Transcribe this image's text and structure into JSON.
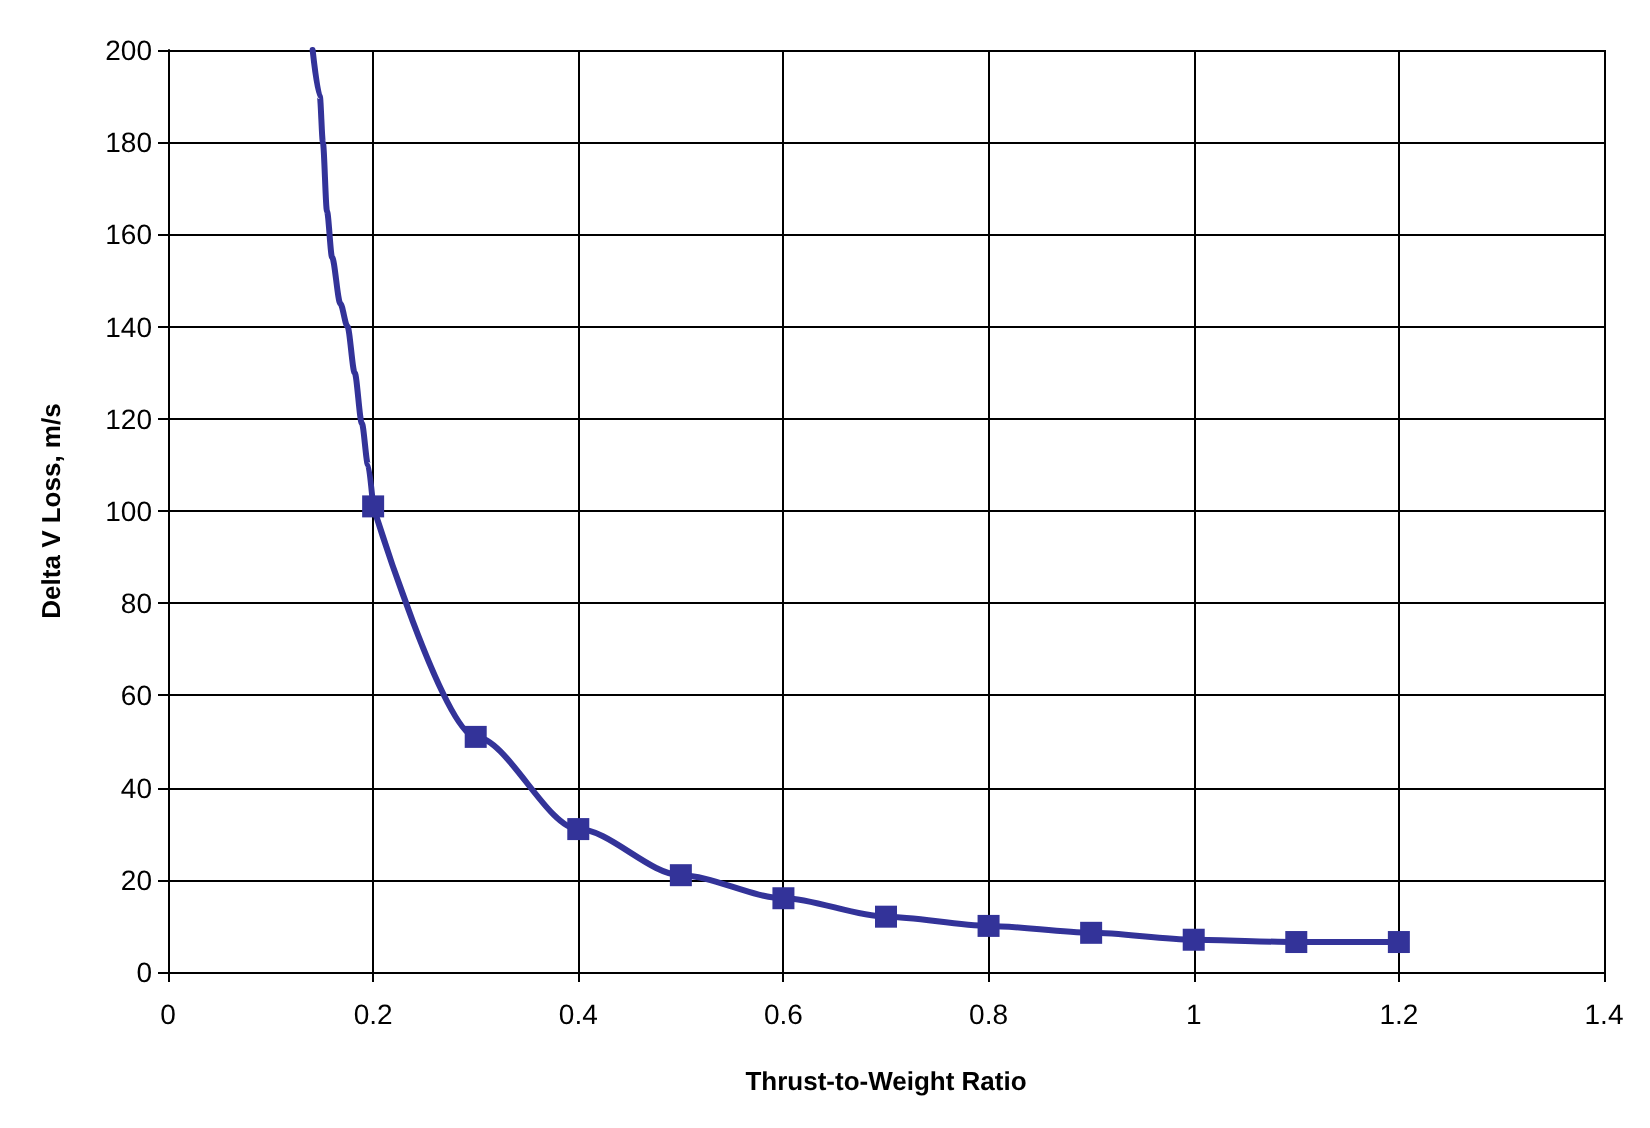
{
  "chart_data": {
    "type": "line",
    "xlabel": "Thrust-to-Weight Ratio",
    "ylabel": "Delta V Loss, m/s",
    "xlim": [
      0,
      1.4
    ],
    "xticks": [
      0,
      0.2,
      0.4,
      0.6,
      0.8,
      1,
      1.2,
      1.4
    ],
    "ylim": [
      0,
      200
    ],
    "yticks": [
      0,
      20,
      40,
      60,
      80,
      100,
      120,
      140,
      160,
      180,
      200
    ],
    "grid": true,
    "line_style": "solid",
    "series": [
      {
        "color": "#333399",
        "marker": "none",
        "x": [
          0.141,
          0.148,
          0.151,
          0.155,
          0.16,
          0.168,
          0.175,
          0.182,
          0.189,
          0.195,
          0.2
        ],
        "values": [
          200,
          190,
          180,
          165,
          155,
          145,
          140,
          130,
          119,
          110,
          101
        ]
      },
      {
        "color": "#333399",
        "marker": "square",
        "x": [
          0.2,
          0.3,
          0.4,
          0.5,
          0.6,
          0.7,
          0.8,
          0.9,
          1,
          1.1,
          1.2
        ],
        "values": [
          101,
          51,
          31,
          21,
          16,
          12,
          10,
          8.5,
          7,
          6.5,
          6.5
        ]
      }
    ]
  }
}
